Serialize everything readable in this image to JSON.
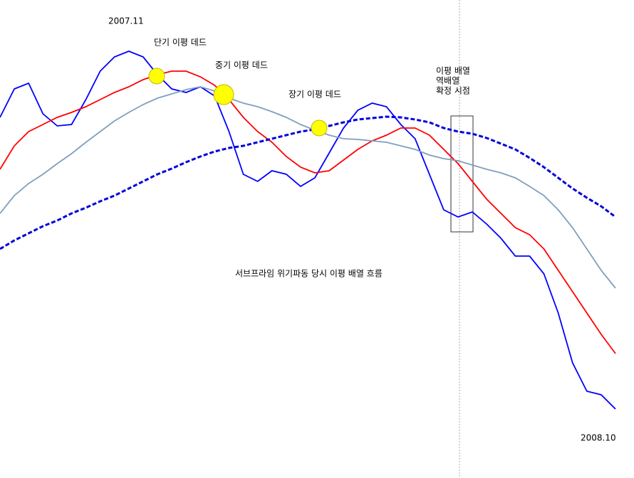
{
  "chart_data": {
    "type": "line",
    "start_label": "2007.11",
    "end_label": "2008.10",
    "annotations": [
      "단기 이평 데드",
      "중기 이평 데드",
      "장기 이평 데드",
      [
        "이평 배열",
        "역배열",
        "확정 시점"
      ],
      "서브프라임 위기파동 당시 이평 배열 흐름"
    ],
    "ylim": [
      0,
      672
    ],
    "series": [
      {
        "color": "#0000ff",
        "style": "solid",
        "values": [
          507,
          547,
          555,
          512,
          495,
          497,
          532,
          572,
          592,
          600,
          592,
          567,
          547,
          542,
          550,
          537,
          487,
          427,
          417,
          432,
          427,
          410,
          422,
          457,
          492,
          517,
          527,
          522,
          497,
          477,
          427,
          377,
          367,
          374,
          357,
          337,
          312,
          312,
          287,
          232,
          162,
          122,
          117,
          97
        ]
      },
      {
        "color": "#ff0000",
        "style": "solid",
        "values": [
          434,
          467,
          487,
          497,
          507,
          514,
          522,
          532,
          542,
          550,
          560,
          567,
          572,
          572,
          564,
          552,
          532,
          507,
          487,
          472,
          452,
          437,
          429,
          432,
          447,
          462,
          474,
          482,
          492,
          492,
          482,
          462,
          442,
          417,
          392,
          372,
          352,
          342,
          322,
          292,
          262,
          232,
          202,
          175
        ]
      },
      {
        "color": "#7f9fbf",
        "style": "solid",
        "values": [
          372,
          397,
          414,
          427,
          442,
          456,
          472,
          487,
          502,
          514,
          525,
          534,
          540,
          546,
          550,
          544,
          534,
          527,
          522,
          515,
          507,
          497,
          489,
          482,
          477,
          476,
          474,
          472,
          467,
          462,
          454,
          449,
          446,
          440,
          434,
          429,
          422,
          410,
          397,
          377,
          352,
          322,
          292,
          267
        ]
      },
      {
        "color": "#0000dd",
        "style": "dashed",
        "values": [
          322,
          334,
          344,
          354,
          362,
          372,
          380,
          389,
          397,
          407,
          417,
          427,
          435,
          444,
          452,
          459,
          464,
          467,
          472,
          477,
          482,
          487,
          490,
          495,
          500,
          504,
          506,
          508,
          507,
          504,
          500,
          492,
          487,
          484,
          478,
          470,
          462,
          450,
          437,
          422,
          407,
          394,
          382,
          367
        ]
      }
    ]
  }
}
